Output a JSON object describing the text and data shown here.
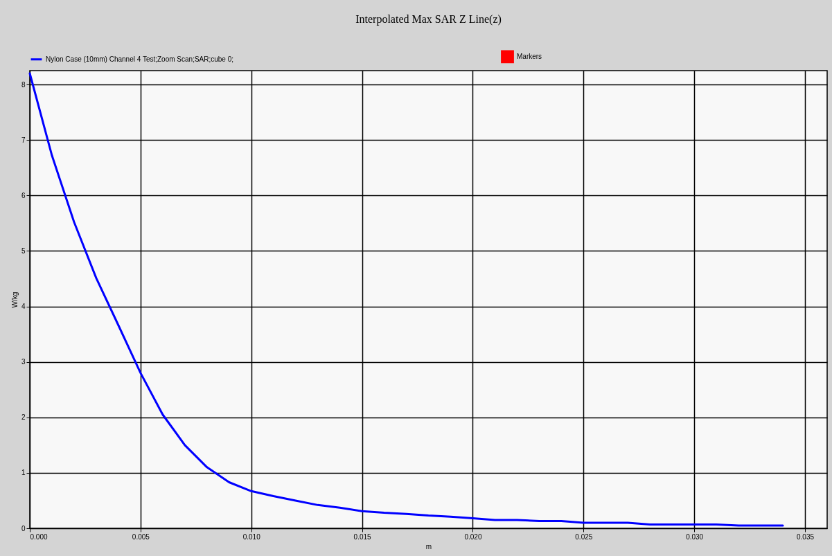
{
  "chart_data": {
    "type": "line",
    "title": "Interpolated Max SAR Z Line(z)",
    "xlabel": "m",
    "ylabel": "W/kg",
    "grid": true,
    "legend": "top",
    "x": [
      0,
      0.001,
      0.002,
      0.003,
      0.004,
      0.005,
      0.006,
      0.007,
      0.008,
      0.009,
      0.01,
      0.011,
      0.012,
      0.013,
      0.014,
      0.015,
      0.016,
      0.017,
      0.018,
      0.019,
      0.02,
      0.021,
      0.022,
      0.023,
      0.024,
      0.025,
      0.026,
      0.027,
      0.028,
      0.029,
      0.03,
      0.031,
      0.032,
      0.033,
      0.034
    ],
    "series": [
      {
        "name": "Nylon Case (10mm) Channel 4 Test;Zoom Scan;SAR;cube 0;",
        "color": "#0000ff",
        "marker": "none",
        "values": [
          8.2,
          6.72,
          5.52,
          4.51,
          3.66,
          2.8,
          2.05,
          1.5,
          1.1,
          0.83,
          0.67,
          0.58,
          0.5,
          0.42,
          0.37,
          0.31,
          0.28,
          0.26,
          0.23,
          0.21,
          0.18,
          0.15,
          0.15,
          0.13,
          0.13,
          0.1,
          0.1,
          0.1,
          0.07,
          0.07,
          0.07,
          0.07,
          0.05,
          0.05,
          0.05
        ]
      },
      {
        "name": "Markers",
        "color": "#ff0000",
        "type": "scatter",
        "marker": "square",
        "values": [
          null,
          null,
          null,
          null,
          null,
          null,
          null,
          null,
          null,
          null,
          null,
          null,
          null,
          null,
          null,
          null,
          null,
          null,
          null,
          null,
          null,
          null,
          null,
          null,
          null,
          null,
          null,
          null,
          null,
          null,
          null,
          null,
          null,
          null,
          null
        ]
      }
    ],
    "xlim": [
      0,
      0.036
    ],
    "ylim": [
      0,
      8.25
    ],
    "xticks": [
      {
        "value": 0,
        "label": "0.000"
      },
      {
        "value": 0.005,
        "label": "0.005"
      },
      {
        "value": 0.01,
        "label": "0.010"
      },
      {
        "value": 0.015,
        "label": "0.015"
      },
      {
        "value": 0.02,
        "label": "0.020"
      },
      {
        "value": 0.025,
        "label": "0.025"
      },
      {
        "value": 0.03,
        "label": "0.030"
      },
      {
        "value": 0.035,
        "label": "0.035"
      }
    ],
    "yticks": [
      0,
      1,
      2,
      3,
      4,
      5,
      6,
      7,
      8
    ]
  }
}
